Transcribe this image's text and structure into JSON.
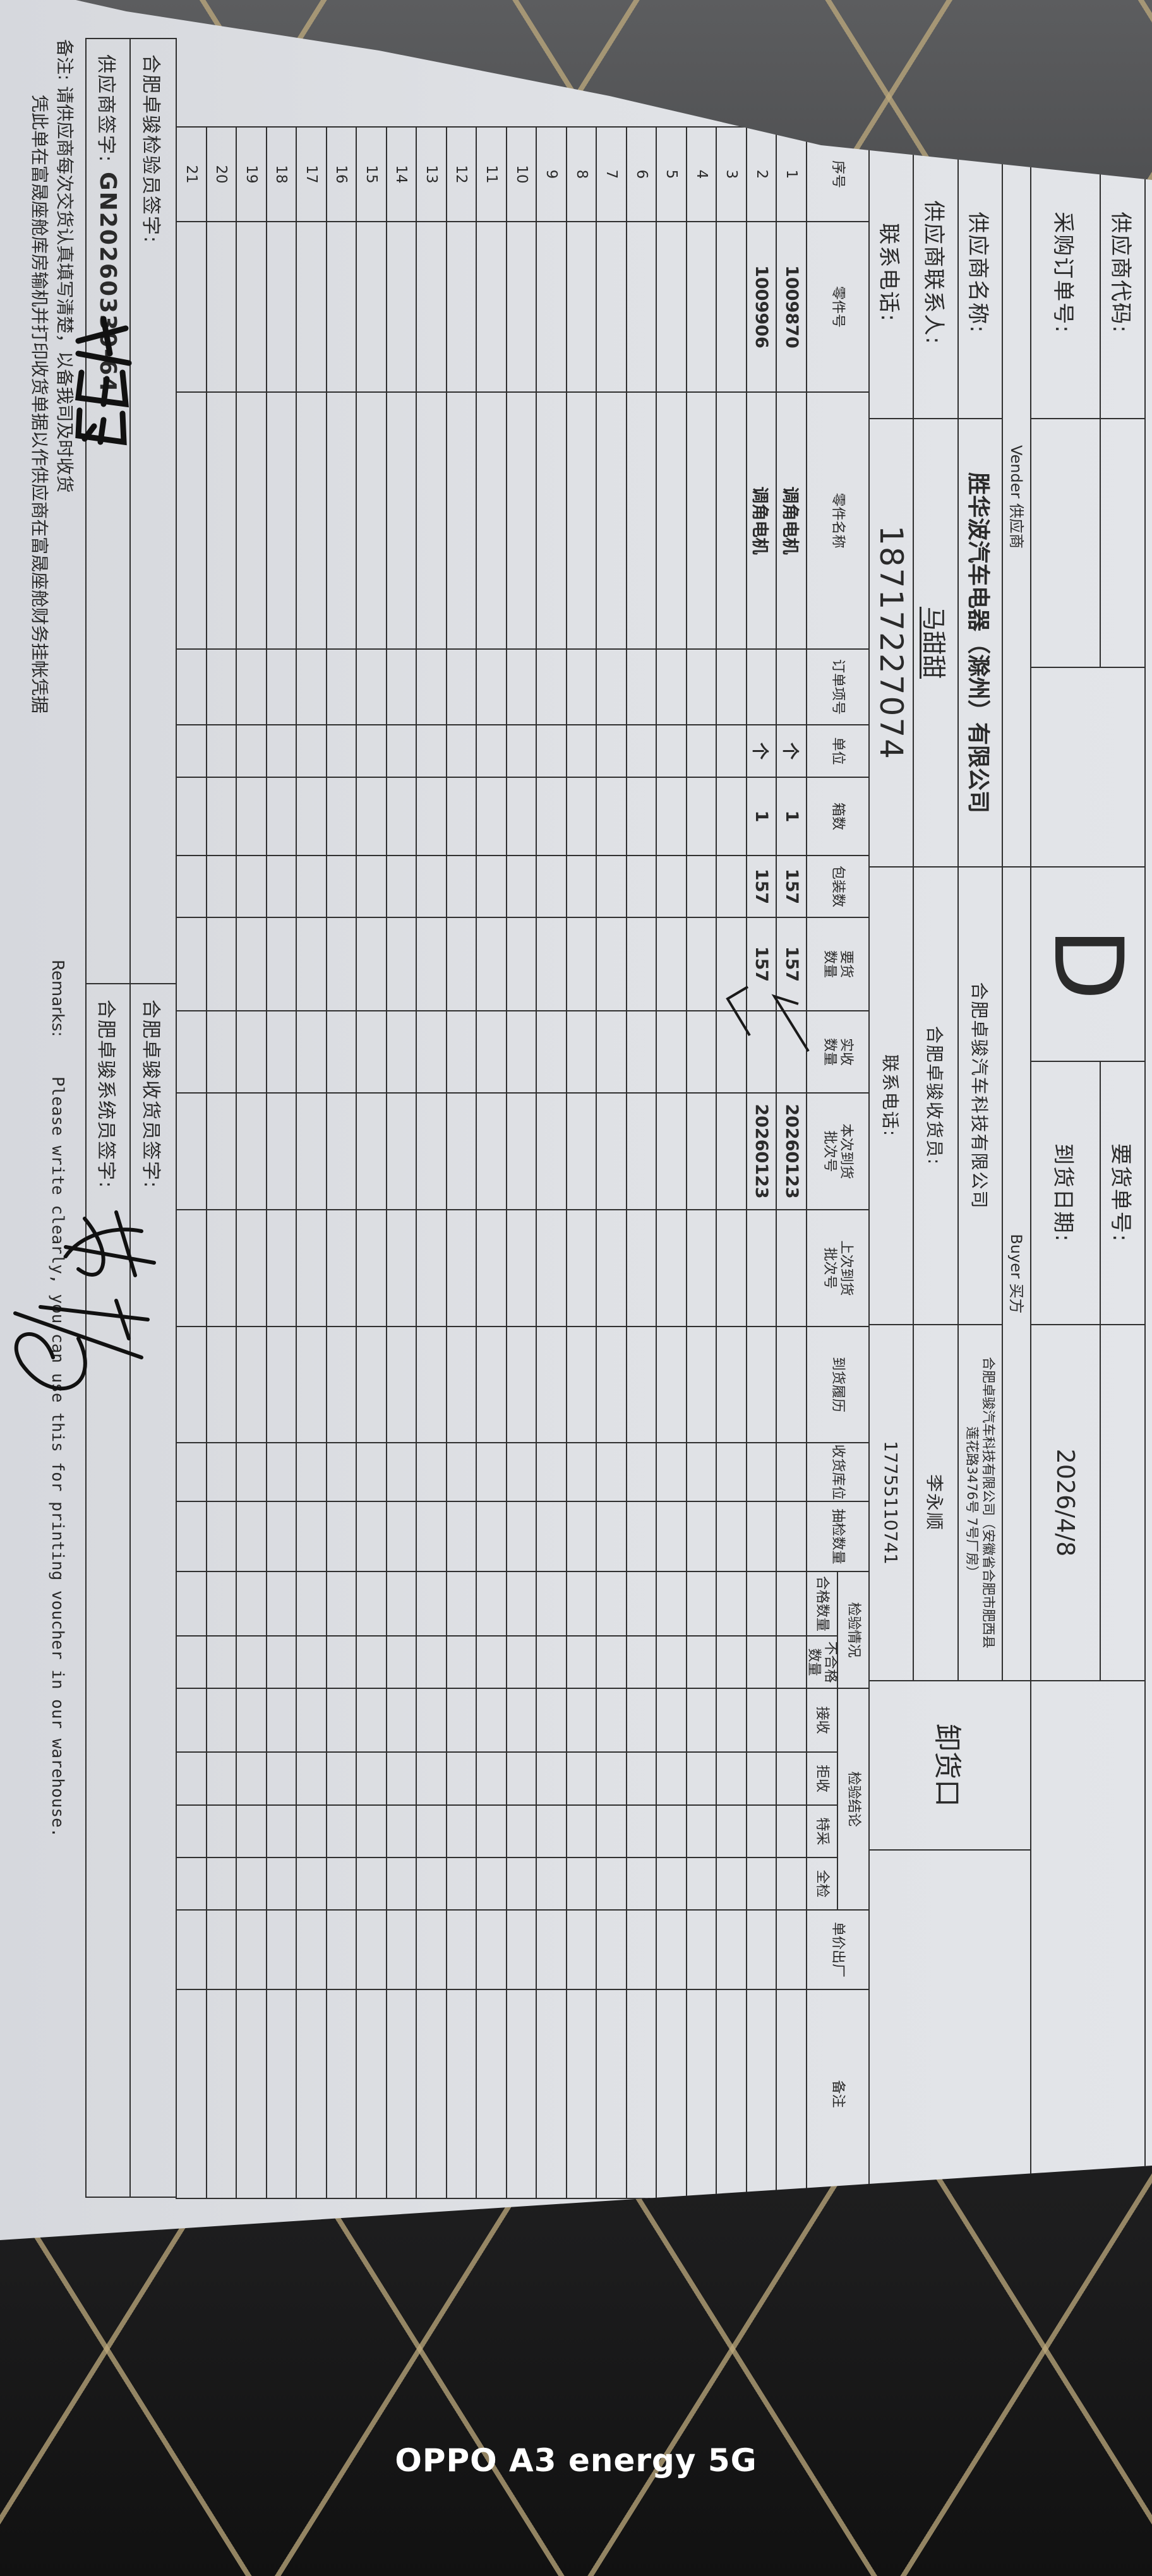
{
  "header": {
    "supplier_code_label": "供应商代码:",
    "po_number_label": "采购订单号:",
    "d_mark": "D",
    "delivery_request_no_label": "要货单号:",
    "arrival_date_label": "到货日期:",
    "arrival_date": "2026/4/8",
    "vendor_label": "Vender  供应商",
    "buyer_label": "Buyer  买方",
    "unloading_port": "卸货口"
  },
  "supplier": {
    "name_label": "供应商名称:",
    "name": "胜华波汽车电器（滁州）有限公司",
    "contact_label": "供应商联系人:",
    "contact": "马甜甜",
    "phone_label": "联系电话:",
    "phone": "18717227074"
  },
  "buyer": {
    "company": "合肥卓骏汽车科技有限公司",
    "address_line1": "合肥卓骏汽车科技有限公司（安徽省合肥市肥西县",
    "address_line2": "莲花路3476号 7号厂房）",
    "receiver_label": "合肥卓骏收货员:",
    "receiver": "李永顺",
    "phone_label": "联系电话:",
    "phone": "17755110741"
  },
  "table": {
    "columns": [
      "序号",
      "零件号",
      "零件名称",
      "订单项号",
      "单位",
      "箱数",
      "包装数",
      "要货\n数量",
      "实收\n数量",
      "本次到货\n批次号",
      "上次到货\n批次号",
      "到货履历",
      "收货库位",
      "抽检数量",
      "合格数量",
      "不合格\n数量",
      "接收",
      "拒收",
      "特采",
      "全检",
      "单价出厂",
      "备注"
    ],
    "groups": {
      "inspection_status": "检验情况",
      "inspection_result": "检验结论"
    },
    "rows": [
      {
        "cells": [
          "1",
          "1009870",
          "调角电机",
          "",
          "个",
          "1",
          "157",
          "157",
          "",
          "20260123",
          "",
          "",
          "",
          "",
          "",
          "",
          "",
          "",
          "",
          "",
          "",
          ""
        ],
        "received_checked": true
      },
      {
        "cells": [
          "2",
          "1009906",
          "调角电机",
          "",
          "个",
          "1",
          "157",
          "157",
          "",
          "20260123",
          "",
          "",
          "",
          "",
          "",
          "",
          "",
          "",
          "",
          "",
          "",
          ""
        ],
        "received_checked": true
      },
      {
        "cells": [
          "3"
        ]
      },
      {
        "cells": [
          "4"
        ]
      },
      {
        "cells": [
          "5"
        ]
      },
      {
        "cells": [
          "6"
        ]
      },
      {
        "cells": [
          "7"
        ]
      },
      {
        "cells": [
          "8"
        ]
      },
      {
        "cells": [
          "9"
        ]
      },
      {
        "cells": [
          "10"
        ]
      },
      {
        "cells": [
          "11"
        ]
      },
      {
        "cells": [
          "12"
        ]
      },
      {
        "cells": [
          "13"
        ]
      },
      {
        "cells": [
          "14"
        ]
      },
      {
        "cells": [
          "15"
        ]
      },
      {
        "cells": [
          "16"
        ]
      },
      {
        "cells": [
          "17"
        ]
      },
      {
        "cells": [
          "18"
        ]
      },
      {
        "cells": [
          "19"
        ]
      },
      {
        "cells": [
          "20"
        ]
      },
      {
        "cells": [
          "21"
        ]
      }
    ]
  },
  "signatures": {
    "inspector_label": "合肥卓骏检验员签字:",
    "receiver_label": "合肥卓骏收货员签字:",
    "supplier_label": "供应商签字:",
    "supplier_code": "GN20260330-64",
    "system_label": "合肥卓骏系统员签字:"
  },
  "remarks": {
    "label": "备注:",
    "line1": "请供应商每次交货认真填写清楚，以备我司及时收货",
    "line2": "凭此单在富晟座舱库房输机并打印收货单据以作供应商在富晟座舱财务挂帐凭据",
    "en_label": "Remarks:",
    "en_text": "Please write clearly, you can use this for printing voucher in our warehouse."
  },
  "watermark": "OPPO A3 energy 5G",
  "colors": {
    "paper": "#dfe1e5",
    "ink": "#2a2a2a",
    "background": "#1c1c1d",
    "stitch": "#beaa7d"
  }
}
